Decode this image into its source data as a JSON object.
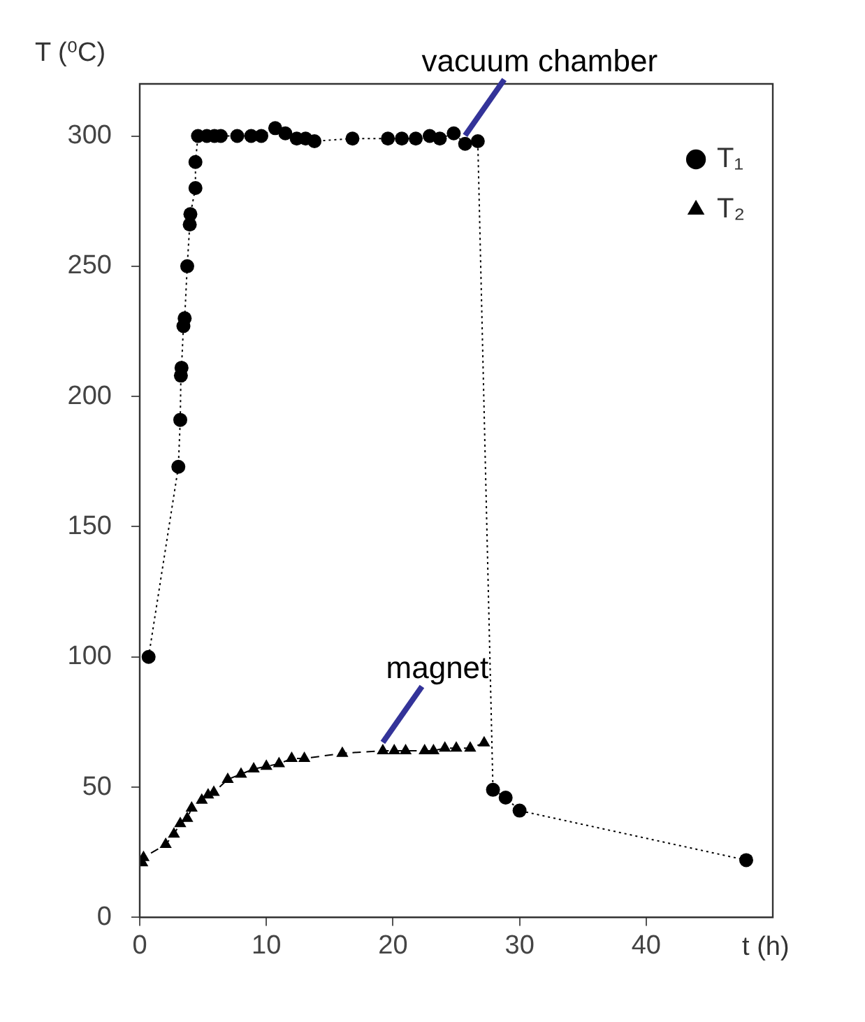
{
  "chart_data": {
    "type": "line",
    "xlabel": "t (h)",
    "ylabel": "T (⁰C)",
    "xlim": [
      0,
      50
    ],
    "xticks": [
      0,
      10,
      20,
      30,
      40
    ],
    "ylim": [
      0,
      320
    ],
    "yticks": [
      0,
      50,
      100,
      150,
      200,
      250,
      300
    ],
    "grid": false,
    "legend": "top right",
    "annotations": [
      {
        "text": "vacuum chamber",
        "x": 25.7,
        "y": 297
      },
      {
        "text": "magnet",
        "x": 19.2,
        "y": 64
      }
    ],
    "series": [
      {
        "name": "T₁",
        "color": "#000000",
        "marker": "circle",
        "line_style": "dotted",
        "x": [
          0.7,
          3.05,
          3.2,
          3.25,
          3.3,
          3.45,
          3.55,
          3.75,
          3.95,
          4.0,
          4.4,
          4.4,
          4.6,
          5.3,
          5.9,
          6.4,
          7.7,
          8.8,
          9.6,
          10.7,
          11.5,
          12.4,
          13.1,
          13.8,
          16.8,
          19.6,
          20.7,
          21.8,
          22.9,
          23.7,
          24.8,
          25.7,
          26.7,
          27.9,
          28.9,
          30.0,
          47.9
        ],
        "values": [
          100,
          173,
          191,
          208,
          211,
          227,
          230,
          250,
          266,
          270,
          280,
          290,
          300,
          300,
          300,
          300,
          300,
          300,
          300,
          303,
          301,
          299,
          299,
          298,
          299,
          299,
          299,
          299,
          300,
          299,
          301,
          297,
          298,
          49,
          46,
          41,
          22
        ]
      },
      {
        "name": "T₂",
        "color": "#000000",
        "marker": "triangle",
        "line_style": "dashed",
        "x": [
          0.2,
          0.3,
          2.05,
          2.7,
          3.2,
          3.75,
          4.1,
          4.9,
          5.4,
          5.85,
          6.95,
          8.0,
          9.0,
          10.0,
          11.0,
          12.0,
          13.0,
          16.0,
          19.2,
          20.1,
          21.0,
          22.5,
          23.2,
          24.1,
          25.0,
          26.1,
          27.2
        ],
        "values": [
          21,
          23,
          28,
          32,
          36,
          38,
          42,
          45,
          47,
          48,
          53,
          55,
          57,
          58,
          59,
          61,
          61,
          63,
          64,
          64,
          64,
          64,
          64,
          65,
          65,
          65,
          67
        ]
      }
    ]
  }
}
